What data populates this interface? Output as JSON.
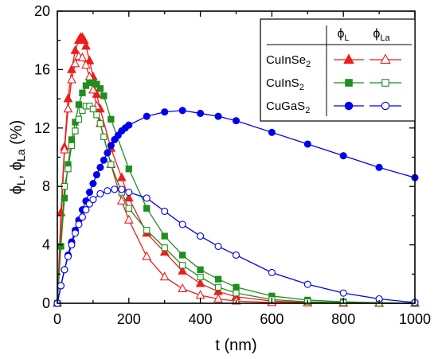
{
  "chart_data": {
    "type": "line",
    "xlabel": "t (nm)",
    "ylabel": "ϕL, ϕLa (%)",
    "xlim": [
      0,
      1000
    ],
    "ylim": [
      0,
      20
    ],
    "xticks": [
      0,
      200,
      400,
      600,
      800,
      1000
    ],
    "yticks": [
      0,
      4,
      8,
      12,
      16,
      20
    ],
    "legend": {
      "position": "top-right",
      "col1_header": "ϕL",
      "col2_header": "ϕLa",
      "rows": [
        "CuInSe2",
        "CuInS2",
        "CuGaS2"
      ]
    },
    "series": [
      {
        "name": "CuInSe2 ϕL",
        "material": "CuInSe2",
        "kind": "L",
        "color": "#ee1c1c",
        "marker": "triangle",
        "filled": true,
        "x": [
          0,
          10,
          20,
          30,
          40,
          50,
          60,
          65,
          70,
          75,
          80,
          90,
          100,
          110,
          120,
          150,
          180,
          200,
          250,
          300,
          350,
          400,
          450,
          500,
          600,
          700,
          800,
          900,
          1000
        ],
        "y": [
          0,
          6.2,
          10.7,
          14.0,
          16.0,
          17.3,
          18.0,
          18.2,
          18.2,
          18.0,
          17.6,
          16.6,
          15.5,
          14.3,
          13.3,
          10.6,
          8.6,
          7.2,
          4.8,
          3.5,
          2.2,
          1.35,
          0.8,
          0.45,
          0.15,
          0.05,
          0.02,
          0.0,
          0.0
        ]
      },
      {
        "name": "CuInSe2 ϕLa",
        "material": "CuInSe2",
        "kind": "La",
        "color": "#ee1c1c",
        "marker": "triangle",
        "filled": false,
        "x": [
          0,
          20,
          30,
          40,
          50,
          60,
          70,
          80,
          90,
          100,
          110,
          120,
          150,
          180,
          200,
          250,
          300,
          350,
          400,
          450,
          500,
          600,
          700,
          800,
          900,
          1000
        ],
        "y": [
          0,
          10.5,
          13.3,
          15.3,
          16.4,
          16.9,
          16.8,
          16.3,
          15.5,
          14.6,
          13.5,
          12.3,
          9.5,
          7.0,
          5.7,
          3.2,
          1.8,
          1.0,
          0.55,
          0.3,
          0.15,
          0.05,
          0.02,
          0.0,
          0.0,
          0.0
        ]
      },
      {
        "name": "CuInS2 ϕL",
        "material": "CuInS2",
        "kind": "L",
        "color": "#1f8e1f",
        "marker": "square",
        "filled": true,
        "x": [
          0,
          10,
          20,
          30,
          40,
          50,
          60,
          70,
          80,
          90,
          100,
          110,
          120,
          130,
          150,
          200,
          250,
          300,
          350,
          400,
          450,
          500,
          600,
          700,
          800,
          900,
          1000
        ],
        "y": [
          0,
          3.9,
          7.2,
          9.5,
          11.2,
          12.4,
          13.6,
          14.4,
          14.9,
          15.1,
          15.1,
          15.0,
          14.7,
          14.2,
          12.6,
          9.2,
          6.5,
          4.6,
          3.3,
          2.3,
          1.65,
          1.1,
          0.5,
          0.22,
          0.1,
          0.04,
          0.0
        ]
      },
      {
        "name": "CuInS2 ϕLa",
        "material": "CuInS2",
        "kind": "La",
        "color": "#1f8e1f",
        "marker": "square",
        "filled": false,
        "x": [
          0,
          20,
          30,
          40,
          50,
          60,
          70,
          80,
          90,
          100,
          110,
          120,
          130,
          150,
          180,
          200,
          250,
          300,
          350,
          400,
          450,
          500,
          600,
          700,
          800,
          900,
          1000
        ],
        "y": [
          0,
          8.0,
          9.2,
          10.8,
          11.8,
          12.6,
          13.2,
          13.5,
          13.5,
          13.3,
          12.9,
          12.3,
          11.4,
          9.5,
          7.6,
          6.5,
          5.0,
          3.8,
          2.6,
          1.8,
          1.1,
          0.7,
          0.25,
          0.1,
          0.04,
          0.01,
          0.0
        ]
      },
      {
        "name": "CuGaS2 ϕL",
        "material": "CuGaS2",
        "kind": "L",
        "color": "#0000ee",
        "marker": "circle",
        "filled": true,
        "x": [
          0,
          10,
          20,
          30,
          40,
          50,
          60,
          70,
          80,
          90,
          100,
          110,
          120,
          130,
          140,
          150,
          160,
          170,
          180,
          190,
          200,
          250,
          300,
          350,
          400,
          450,
          500,
          600,
          700,
          800,
          900,
          1000
        ],
        "y": [
          0,
          1.2,
          2.3,
          3.3,
          4.2,
          5.0,
          5.7,
          6.4,
          7.0,
          7.6,
          8.2,
          8.8,
          9.3,
          9.8,
          10.3,
          10.8,
          11.2,
          11.5,
          11.8,
          12.0,
          12.2,
          12.8,
          13.1,
          13.2,
          13.0,
          12.8,
          12.5,
          11.7,
          10.9,
          10.1,
          9.3,
          8.6
        ]
      },
      {
        "name": "CuGaS2 ϕLa",
        "material": "CuGaS2",
        "kind": "La",
        "color": "#0000ee",
        "marker": "circle",
        "filled": false,
        "x": [
          0,
          10,
          20,
          30,
          40,
          50,
          60,
          70,
          80,
          90,
          100,
          120,
          140,
          160,
          180,
          200,
          250,
          300,
          350,
          400,
          450,
          500,
          600,
          700,
          800,
          900,
          1000
        ],
        "y": [
          0,
          1.2,
          2.3,
          3.2,
          4.0,
          4.8,
          5.4,
          5.9,
          6.4,
          6.8,
          7.1,
          7.5,
          7.7,
          7.8,
          7.8,
          7.6,
          7.2,
          6.3,
          5.4,
          4.6,
          3.9,
          3.3,
          2.1,
          1.3,
          0.7,
          0.3,
          0.05
        ]
      }
    ]
  }
}
